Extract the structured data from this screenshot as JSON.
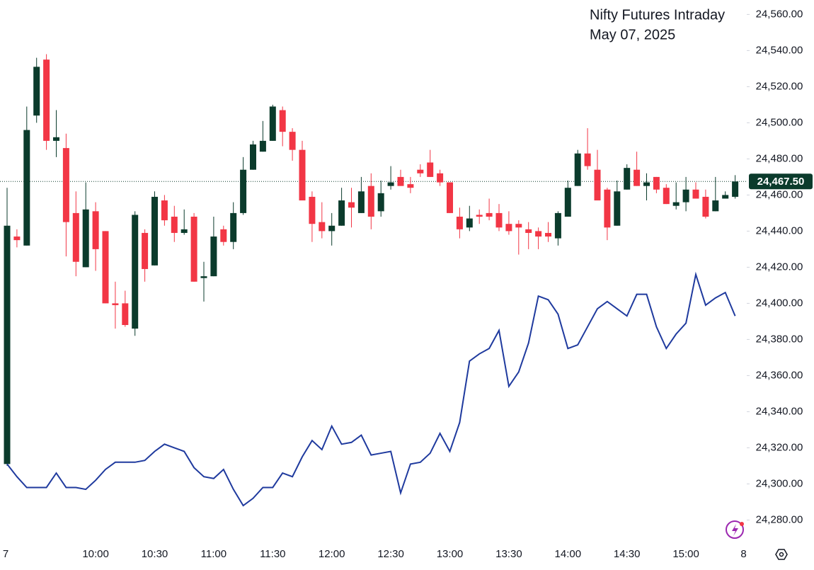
{
  "chart_data": {
    "type": "candlestick",
    "title": "Nifty Futures Intraday",
    "subtitle": "May 07, 2025",
    "categories": [
      "7",
      null,
      null,
      null,
      null,
      null,
      null,
      null,
      null,
      "10:00",
      null,
      null,
      null,
      null,
      null,
      "10:30",
      null,
      null,
      null,
      null,
      null,
      "11:00",
      null,
      null,
      null,
      null,
      null,
      "11:30",
      null,
      null,
      null,
      null,
      null,
      "12:00",
      null,
      null,
      null,
      null,
      null,
      "12:30",
      null,
      null,
      null,
      null,
      null,
      "13:00",
      null,
      null,
      null,
      null,
      null,
      "13:30",
      null,
      null,
      null,
      null,
      null,
      "14:00",
      null,
      null,
      null,
      null,
      null,
      "14:30",
      null,
      null,
      null,
      null,
      null,
      "15:00",
      null,
      null,
      null,
      null,
      null
    ],
    "next_day_label": "8",
    "open": [
      24311,
      24437,
      24432,
      24504,
      24535,
      24490,
      24486,
      24450,
      24420,
      24451,
      24440,
      24400,
      24400,
      24386,
      24439,
      24421,
      24457,
      24448,
      24439,
      24448,
      24414,
      24415,
      24441,
      24434,
      24450,
      24474,
      24484,
      24490,
      24507,
      24495,
      24485,
      24459,
      24445,
      24440,
      24443,
      24456,
      24450,
      24465,
      24451,
      24465,
      24470,
      24466,
      24474,
      24478,
      24472,
      24467,
      24448,
      24442,
      24449,
      24450,
      24450,
      24444,
      24444,
      24441,
      24440,
      24439,
      24436,
      24448,
      24465,
      24483,
      24474,
      24463,
      24443,
      24463,
      24474,
      24465,
      24470,
      24464,
      24454,
      24456,
      24463,
      24459,
      24451,
      24458,
      24459
    ],
    "high": [
      24464,
      24441,
      24509,
      24536,
      24538,
      24507,
      24494,
      24462,
      24467,
      24456,
      24440,
      24412,
      24407,
      24451,
      24441,
      24462,
      24460,
      24454,
      24452,
      24450,
      24423,
      24448,
      24443,
      24456,
      24481,
      24490,
      24501,
      24510,
      24509,
      24497,
      24490,
      24462,
      24456,
      24450,
      24464,
      24464,
      24470,
      24472,
      24468,
      24476,
      24474,
      24470,
      24477,
      24485,
      24474,
      24467,
      24453,
      24454,
      24452,
      24458,
      24455,
      24451,
      24446,
      24445,
      24442,
      24445,
      24451,
      24468,
      24485,
      24497,
      24485,
      24464,
      24468,
      24477,
      24484,
      24472,
      24470,
      24466,
      24467,
      24470,
      24467,
      24463,
      24470,
      24462,
      24471
    ],
    "low": [
      24310,
      24431,
      24432,
      24500,
      24485,
      24481,
      24426,
      24415,
      24420,
      24418,
      24400,
      24386,
      24387,
      24382,
      24412,
      24421,
      24443,
      24434,
      24438,
      24412,
      24401,
      24415,
      24432,
      24430,
      24449,
      24474,
      24484,
      24490,
      24487,
      24479,
      24457,
      24434,
      24436,
      24432,
      24443,
      24442,
      24450,
      24441,
      24448,
      24463,
      24465,
      24461,
      24470,
      24470,
      24465,
      24450,
      24436,
      24440,
      24444,
      24446,
      24440,
      24438,
      24427,
      24430,
      24430,
      24434,
      24432,
      24448,
      24465,
      24474,
      24457,
      24435,
      24443,
      24463,
      24465,
      24457,
      24461,
      24455,
      24452,
      24451,
      24458,
      24447,
      24451,
      24458,
      24458
    ],
    "close": [
      24443,
      24435,
      24496,
      24531,
      24490,
      24492,
      24445,
      24423,
      24452,
      24430,
      24400,
      24399,
      24388,
      24449,
      24419,
      24459,
      24446,
      24439,
      24441,
      24412,
      24415,
      24437,
      24434,
      24450,
      24474,
      24488,
      24490,
      24509,
      24495,
      24485,
      24457,
      24444,
      24440,
      24443,
      24457,
      24453,
      24462,
      24448,
      24461,
      24467,
      24465,
      24464,
      24472,
      24470,
      24467,
      24450,
      24441,
      24447,
      24448,
      24448,
      24442,
      24440,
      24442,
      24439,
      24437,
      24437,
      24450,
      24464,
      24483,
      24476,
      24457,
      24442,
      24462,
      24475,
      24465,
      24467,
      24463,
      24455,
      24456,
      24463,
      24458,
      24448,
      24457,
      24460,
      24467.5
    ],
    "up_color": "#0b3b2c",
    "down_color": "#f23645",
    "line": {
      "color": "#1f3a9e",
      "values": [
        24311,
        24304,
        24298,
        24298,
        24298,
        24306,
        24298,
        24298,
        24297,
        24302,
        24308,
        24312,
        24312,
        24312,
        24313,
        24318,
        24322,
        24320,
        24318,
        24309,
        24304,
        24303,
        24308,
        24297,
        24288,
        24292,
        24298,
        24298,
        24306,
        24304,
        24315,
        24324,
        24319,
        24332,
        24322,
        24323,
        24327,
        24316,
        24317,
        24318,
        24295,
        24311,
        24312,
        24317,
        24328,
        24318,
        24334,
        24368,
        24372,
        24375,
        24385,
        24354,
        24362,
        24378,
        24404,
        24402,
        24394,
        24375,
        24377,
        24387,
        24397,
        24401,
        24397,
        24393,
        24405,
        24405,
        24387,
        24375,
        24383,
        24389,
        24416,
        24399,
        24403,
        24406,
        24393
      ]
    },
    "last_price": {
      "value": 24467.5,
      "label": "24,467.50"
    },
    "ylim": [
      24268,
      24568
    ],
    "yticks": [
      {
        "value": 24280,
        "label": "24,280.00"
      },
      {
        "value": 24300,
        "label": "24,300.00"
      },
      {
        "value": 24320,
        "label": "24,320.00"
      },
      {
        "value": 24340,
        "label": "24,340.00"
      },
      {
        "value": 24360,
        "label": "24,360.00"
      },
      {
        "value": 24380,
        "label": "24,380.00"
      },
      {
        "value": 24400,
        "label": "24,400.00"
      },
      {
        "value": 24420,
        "label": "24,420.00"
      },
      {
        "value": 24440,
        "label": "24,440.00"
      },
      {
        "value": 24460,
        "label": "24,460.00"
      },
      {
        "value": 24480,
        "label": "24,480.00"
      },
      {
        "value": 24500,
        "label": "24,500.00"
      },
      {
        "value": 24520,
        "label": "24,520.00"
      },
      {
        "value": 24540,
        "label": "24,540.00"
      },
      {
        "value": 24560,
        "label": "24,560.00"
      }
    ],
    "grid": false
  }
}
